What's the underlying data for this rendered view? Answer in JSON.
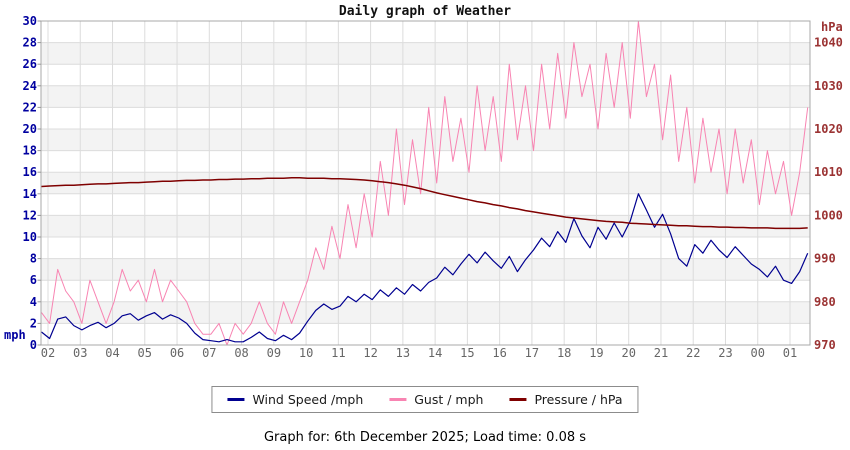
{
  "header": {
    "title": "Daily graph of Weather"
  },
  "axes": {
    "left_unit": "mph",
    "right_unit": "hPa",
    "left_label_color": "#0000a0",
    "right_label_color": "#9b3333",
    "x_label_color": "#666666"
  },
  "legend": {
    "items": [
      {
        "label": "Wind Speed /mph",
        "color": "#000090"
      },
      {
        "label": "Gust / mph",
        "color": "#f884b2"
      },
      {
        "label": "Pressure / hPa",
        "color": "#7f0000"
      }
    ]
  },
  "footer": {
    "text": "Graph for: 6th December 2025; Load time: 0.08 s"
  },
  "chart_data": {
    "type": "line",
    "title": "Daily graph of Weather",
    "x_tick_labels": [
      "02",
      "03",
      "04",
      "05",
      "06",
      "07",
      "08",
      "09",
      "10",
      "11",
      "12",
      "13",
      "14",
      "15",
      "16",
      "17",
      "18",
      "19",
      "20",
      "21",
      "22",
      "23",
      "00",
      "01"
    ],
    "hours_start": 1.8,
    "hours_step": 0.25,
    "ylabel": "mph",
    "y2label": "hPa",
    "ylim": [
      0,
      30
    ],
    "y_ticks": [
      0,
      2,
      4,
      6,
      8,
      10,
      12,
      14,
      16,
      18,
      20,
      22,
      24,
      26,
      28,
      30
    ],
    "y2lim": [
      970,
      1045
    ],
    "y2_ticks": [
      970,
      980,
      990,
      1000,
      1010,
      1020,
      1030,
      1040
    ],
    "grid": true,
    "band_fill": "#f3f3f3",
    "grid_color": "#dcdcdc",
    "frame_color": "#a8a8a8",
    "legend_position": "bottom",
    "series": [
      {
        "name": "Wind Speed /mph",
        "axis": "left",
        "color": "#000090",
        "values": [
          1.2,
          0.6,
          2.4,
          2.6,
          1.8,
          1.4,
          1.8,
          2.1,
          1.6,
          2.0,
          2.7,
          2.9,
          2.3,
          2.7,
          3.0,
          2.4,
          2.8,
          2.5,
          2.0,
          1.1,
          0.5,
          0.4,
          0.3,
          0.5,
          0.3,
          0.3,
          0.7,
          1.2,
          0.6,
          0.4,
          0.9,
          0.5,
          1.1,
          2.2,
          3.2,
          3.8,
          3.3,
          3.6,
          4.5,
          4.0,
          4.7,
          4.2,
          5.1,
          4.5,
          5.3,
          4.7,
          5.6,
          5.0,
          5.8,
          6.2,
          7.2,
          6.5,
          7.5,
          8.4,
          7.6,
          8.6,
          7.8,
          7.1,
          8.2,
          6.8,
          7.9,
          8.8,
          9.9,
          9.1,
          10.5,
          9.5,
          11.7,
          10.1,
          9.0,
          10.9,
          9.8,
          11.3,
          10.0,
          11.5,
          14.0,
          12.5,
          10.9,
          12.1,
          10.3,
          8.0,
          7.3,
          9.3,
          8.5,
          9.7,
          8.8,
          8.1,
          9.1,
          8.3,
          7.5,
          7.0,
          6.3,
          7.3,
          6.0,
          5.7,
          6.8,
          8.5
        ]
      },
      {
        "name": "Gust / mph",
        "axis": "left",
        "color": "#f884b2",
        "values": [
          3,
          2,
          7,
          5,
          4,
          2,
          6,
          4,
          2,
          4,
          7,
          5,
          6,
          4,
          7,
          4,
          6,
          5,
          4,
          2,
          1,
          1,
          2,
          0,
          2,
          1,
          2,
          4,
          2,
          1,
          4,
          2,
          4,
          6,
          9,
          7,
          11,
          8,
          13,
          9,
          14,
          10,
          17,
          12,
          20,
          13,
          19,
          14,
          22,
          15,
          23,
          17,
          21,
          16,
          24,
          18,
          23,
          17,
          26,
          19,
          24,
          18,
          26,
          20,
          27,
          21,
          28,
          23,
          26,
          20,
          27,
          22,
          28,
          21,
          30,
          23,
          26,
          19,
          25,
          17,
          22,
          15,
          21,
          16,
          20,
          14,
          20,
          15,
          19,
          13,
          18,
          14,
          17,
          12,
          16,
          22
        ]
      },
      {
        "name": "Pressure / hPa",
        "axis": "right",
        "color": "#7f0000",
        "values": [
          1006.7,
          1006.8,
          1006.9,
          1007.0,
          1007.0,
          1007.1,
          1007.2,
          1007.3,
          1007.3,
          1007.4,
          1007.5,
          1007.6,
          1007.6,
          1007.7,
          1007.8,
          1007.9,
          1007.9,
          1008.0,
          1008.1,
          1008.1,
          1008.2,
          1008.2,
          1008.3,
          1008.3,
          1008.4,
          1008.4,
          1008.5,
          1008.5,
          1008.6,
          1008.6,
          1008.6,
          1008.7,
          1008.7,
          1008.6,
          1008.6,
          1008.6,
          1008.5,
          1008.5,
          1008.4,
          1008.3,
          1008.2,
          1008.0,
          1007.8,
          1007.6,
          1007.3,
          1007.0,
          1006.6,
          1006.2,
          1005.7,
          1005.2,
          1004.8,
          1004.4,
          1004.0,
          1003.6,
          1003.2,
          1002.9,
          1002.5,
          1002.2,
          1001.8,
          1001.5,
          1001.1,
          1000.8,
          1000.5,
          1000.2,
          999.9,
          999.6,
          999.4,
          999.2,
          999.0,
          998.8,
          998.6,
          998.5,
          998.4,
          998.2,
          998.1,
          998.0,
          997.9,
          997.8,
          997.7,
          997.6,
          997.6,
          997.5,
          997.4,
          997.4,
          997.3,
          997.3,
          997.2,
          997.2,
          997.1,
          997.1,
          997.1,
          997.0,
          997.0,
          997.0,
          997.0,
          997.1
        ]
      }
    ]
  }
}
